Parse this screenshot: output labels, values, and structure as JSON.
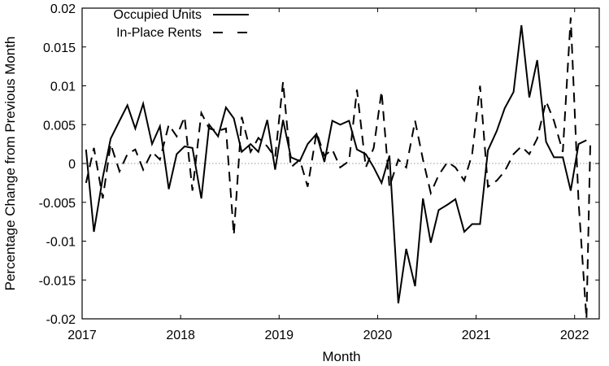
{
  "chart_data": {
    "type": "line",
    "title": "",
    "xlabel": "Month",
    "ylabel": "Percentage Change from Previous Month",
    "xlim": [
      2017,
      2022.25
    ],
    "ylim": [
      -0.02,
      0.02
    ],
    "x_ticks": [
      2017,
      2018,
      2019,
      2020,
      2021,
      2022
    ],
    "y_ticks": [
      -0.02,
      -0.015,
      -0.01,
      -0.005,
      0,
      0.005,
      0.01,
      0.015,
      0.02
    ],
    "y_tick_labels": [
      "-0.02",
      "-0.015",
      "-0.01",
      "-0.005",
      "0",
      "0.005",
      "0.01",
      "0.015",
      "0.02"
    ],
    "zero_reference_line": true,
    "grid": false,
    "legend_position": "top-left",
    "series": [
      {
        "name": "Occupied Units",
        "style": "solid",
        "color": "#000000",
        "points": [
          [
            2017.04,
            0.0018
          ],
          [
            2017.12,
            -0.0088
          ],
          [
            2017.21,
            -0.0018
          ],
          [
            2017.29,
            0.0032
          ],
          [
            2017.38,
            0.0055
          ],
          [
            2017.46,
            0.0075
          ],
          [
            2017.54,
            0.0045
          ],
          [
            2017.62,
            0.0077
          ],
          [
            2017.71,
            0.0025
          ],
          [
            2017.79,
            0.0048
          ],
          [
            2017.88,
            -0.0033
          ],
          [
            2017.96,
            0.0012
          ],
          [
            2018.04,
            0.0022
          ],
          [
            2018.12,
            0.002
          ],
          [
            2018.21,
            -0.0045
          ],
          [
            2018.29,
            0.005
          ],
          [
            2018.38,
            0.0035
          ],
          [
            2018.46,
            0.0072
          ],
          [
            2018.54,
            0.0058
          ],
          [
            2018.62,
            0.0015
          ],
          [
            2018.71,
            0.0025
          ],
          [
            2018.79,
            0.0015
          ],
          [
            2018.88,
            0.0056
          ],
          [
            2018.96,
            -0.0008
          ],
          [
            2019.04,
            0.0056
          ],
          [
            2019.12,
            0.0008
          ],
          [
            2019.21,
            0.0003
          ],
          [
            2019.29,
            0.0025
          ],
          [
            2019.38,
            0.0038
          ],
          [
            2019.46,
            0.0002
          ],
          [
            2019.54,
            0.0055
          ],
          [
            2019.62,
            0.005
          ],
          [
            2019.71,
            0.0055
          ],
          [
            2019.79,
            0.0018
          ],
          [
            2019.88,
            0.0012
          ],
          [
            2019.96,
            -0.0005
          ],
          [
            2020.04,
            -0.0025
          ],
          [
            2020.12,
            0.001
          ],
          [
            2020.21,
            -0.018
          ],
          [
            2020.29,
            -0.011
          ],
          [
            2020.38,
            -0.0158
          ],
          [
            2020.46,
            -0.0045
          ],
          [
            2020.54,
            -0.0102
          ],
          [
            2020.62,
            -0.006
          ],
          [
            2020.71,
            -0.0053
          ],
          [
            2020.79,
            -0.0046
          ],
          [
            2020.88,
            -0.0088
          ],
          [
            2020.96,
            -0.0078
          ],
          [
            2021.04,
            -0.0078
          ],
          [
            2021.12,
            0.0017
          ],
          [
            2021.21,
            0.0042
          ],
          [
            2021.29,
            0.0071
          ],
          [
            2021.38,
            0.0092
          ],
          [
            2021.46,
            0.0178
          ],
          [
            2021.54,
            0.0085
          ],
          [
            2021.62,
            0.0133
          ],
          [
            2021.71,
            0.0028
          ],
          [
            2021.79,
            0.0008
          ],
          [
            2021.88,
            0.0008
          ],
          [
            2021.96,
            -0.0035
          ],
          [
            2022.04,
            0.0025
          ],
          [
            2022.12,
            0.003
          ]
        ]
      },
      {
        "name": "In-Place Rents",
        "style": "dashed",
        "color": "#000000",
        "points": [
          [
            2017.04,
            -0.0025
          ],
          [
            2017.12,
            0.002
          ],
          [
            2017.21,
            -0.0045
          ],
          [
            2017.29,
            0.0025
          ],
          [
            2017.38,
            -0.001
          ],
          [
            2017.46,
            0.0012
          ],
          [
            2017.54,
            0.0018
          ],
          [
            2017.62,
            -0.0008
          ],
          [
            2017.71,
            0.0015
          ],
          [
            2017.79,
            0.0005
          ],
          [
            2017.88,
            0.005
          ],
          [
            2017.96,
            0.0035
          ],
          [
            2018.04,
            0.006
          ],
          [
            2018.12,
            -0.0035
          ],
          [
            2018.21,
            0.0065
          ],
          [
            2018.29,
            0.0045
          ],
          [
            2018.38,
            0.0042
          ],
          [
            2018.46,
            0.0045
          ],
          [
            2018.54,
            -0.0092
          ],
          [
            2018.62,
            0.006
          ],
          [
            2018.71,
            0.0015
          ],
          [
            2018.79,
            0.0033
          ],
          [
            2018.88,
            0.0022
          ],
          [
            2018.96,
            0.0008
          ],
          [
            2019.04,
            0.0105
          ],
          [
            2019.12,
            -0.0005
          ],
          [
            2019.21,
            0.0005
          ],
          [
            2019.29,
            -0.003
          ],
          [
            2019.38,
            0.004
          ],
          [
            2019.46,
            0.001
          ],
          [
            2019.54,
            0.0018
          ],
          [
            2019.62,
            -0.0005
          ],
          [
            2019.71,
            0.0003
          ],
          [
            2019.79,
            0.0095
          ],
          [
            2019.88,
            -0.0005
          ],
          [
            2019.96,
            0.002
          ],
          [
            2020.04,
            0.0093
          ],
          [
            2020.12,
            -0.003
          ],
          [
            2020.21,
            0.0005
          ],
          [
            2020.29,
            -0.0005
          ],
          [
            2020.38,
            0.0055
          ],
          [
            2020.46,
            0.0005
          ],
          [
            2020.54,
            -0.0038
          ],
          [
            2020.62,
            -0.0015
          ],
          [
            2020.71,
            0.0002
          ],
          [
            2020.79,
            -0.0005
          ],
          [
            2020.88,
            -0.0022
          ],
          [
            2020.96,
            0.0012
          ],
          [
            2021.04,
            0.01
          ],
          [
            2021.12,
            -0.003
          ],
          [
            2021.21,
            -0.0022
          ],
          [
            2021.29,
            -0.001
          ],
          [
            2021.38,
            0.0012
          ],
          [
            2021.46,
            0.0022
          ],
          [
            2021.54,
            0.0012
          ],
          [
            2021.62,
            0.0032
          ],
          [
            2021.71,
            0.008
          ],
          [
            2021.79,
            0.0055
          ],
          [
            2021.88,
            0.0015
          ],
          [
            2021.96,
            0.0188
          ],
          [
            2022.04,
            -0.005
          ],
          [
            2022.12,
            -0.02
          ],
          [
            2022.16,
            0.003
          ]
        ]
      }
    ]
  }
}
